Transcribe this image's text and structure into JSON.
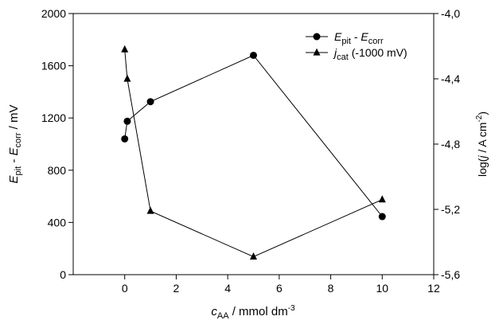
{
  "chart_data": {
    "type": "line",
    "xlabel": {
      "main": "c",
      "sub": "AA",
      "rest": " / mmol dm",
      "sup": "-3"
    },
    "ylabel_left": {
      "main": "E",
      "sub": "pit",
      "mid": " - ",
      "main2": "E",
      "sub2": "corr",
      "rest": " / mV"
    },
    "ylabel_right": {
      "pre": "log(",
      "ital": "j",
      "rest": " / A cm",
      "sup": "-2",
      "post": ")"
    },
    "xlim": [
      -2,
      12
    ],
    "xticks": [
      0,
      2,
      4,
      6,
      8,
      10,
      12
    ],
    "xtick_labels": [
      "0",
      "2",
      "4",
      "6",
      "8",
      "10",
      "12"
    ],
    "ylim_left": [
      0,
      2000
    ],
    "yticks_left": [
      0,
      400,
      800,
      1200,
      1600,
      2000
    ],
    "ytick_labels_left": [
      "0",
      "400",
      "800",
      "1200",
      "1600",
      "2000"
    ],
    "ylim_right": [
      -5.6,
      -4.0
    ],
    "yticks_right": [
      -4.0,
      -4.4,
      -4.8,
      -5.2,
      -5.6
    ],
    "ytick_labels_right": [
      "-4,0",
      "-4,4",
      "-4,8",
      "-5,2",
      "-5,6"
    ],
    "legend_position": "top-right",
    "series": [
      {
        "legend": {
          "main": "E",
          "sub": "pit",
          "mid": " - ",
          "main2": "E",
          "sub2": "corr",
          "rest": ""
        },
        "marker": "circle",
        "axis": "left",
        "x": [
          0,
          0.1,
          1,
          5,
          10
        ],
        "y": [
          1040,
          1175,
          1325,
          1680,
          445
        ]
      },
      {
        "legend": {
          "main": "j",
          "sub": "cat",
          "mid": "",
          "main2": "",
          "sub2": "",
          "rest": " (-1000 mV)"
        },
        "marker": "triangle",
        "axis": "right",
        "x": [
          0,
          0.1,
          1,
          5,
          10
        ],
        "y": [
          -4.22,
          -4.4,
          -5.21,
          -5.49,
          -5.14
        ]
      }
    ]
  }
}
